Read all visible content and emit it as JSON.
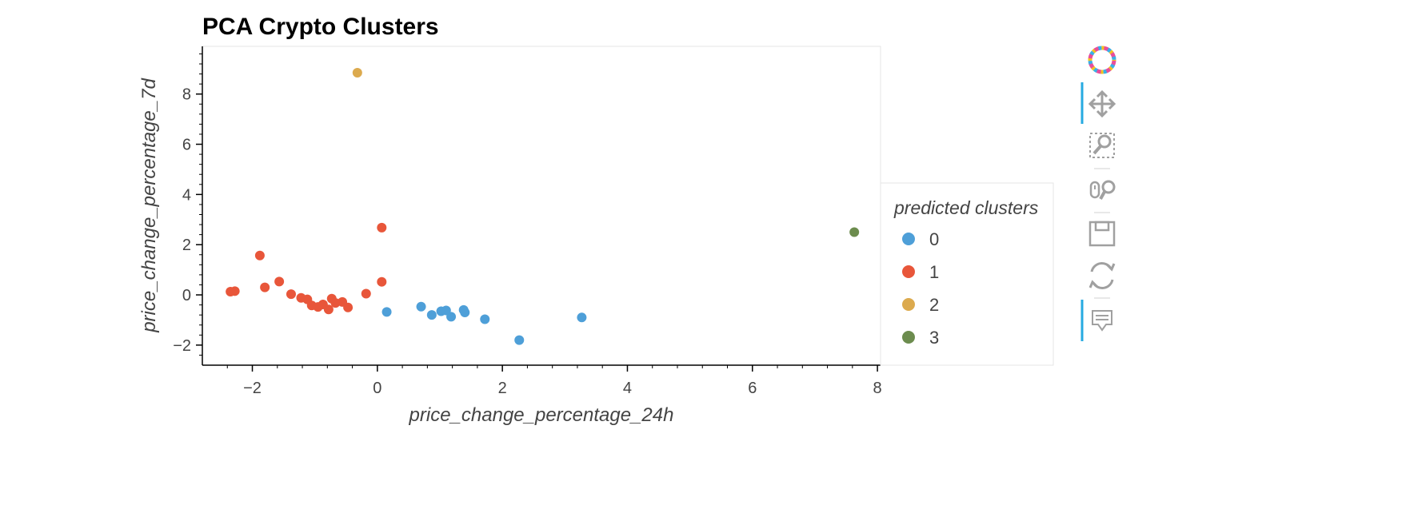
{
  "chart_data": {
    "type": "scatter",
    "title": "PCA Crypto Clusters",
    "xlabel": "price_change_percentage_24h",
    "ylabel": "price_change_percentage_7d",
    "xlim": [
      -2.8,
      8.05
    ],
    "ylim": [
      -2.8,
      9.9
    ],
    "xticks": [
      -2,
      0,
      2,
      4,
      6,
      8
    ],
    "yticks": [
      -2,
      0,
      2,
      4,
      6,
      8
    ],
    "xticklabels": [
      "−2",
      "0",
      "2",
      "4",
      "6",
      "8"
    ],
    "yticklabels": [
      "−2",
      "0",
      "2",
      "4",
      "6",
      "8"
    ],
    "grid": false,
    "legend": {
      "title": "predicted clusters",
      "placement": "right"
    },
    "series": [
      {
        "name": "0",
        "color": "#4e9fd8",
        "points": [
          [
            0.15,
            -0.68
          ],
          [
            0.7,
            -0.47
          ],
          [
            0.87,
            -0.8
          ],
          [
            1.02,
            -0.65
          ],
          [
            1.1,
            -0.62
          ],
          [
            1.18,
            -0.87
          ],
          [
            1.38,
            -0.6
          ],
          [
            1.4,
            -0.7
          ],
          [
            1.72,
            -0.97
          ],
          [
            2.27,
            -1.8
          ],
          [
            3.27,
            -0.9
          ]
        ]
      },
      {
        "name": "1",
        "color": "#e8563a",
        "points": [
          [
            -2.35,
            0.13
          ],
          [
            -2.28,
            0.15
          ],
          [
            -1.88,
            1.57
          ],
          [
            -1.8,
            0.3
          ],
          [
            -1.57,
            0.53
          ],
          [
            -1.38,
            0.03
          ],
          [
            -1.22,
            -0.12
          ],
          [
            -1.12,
            -0.18
          ],
          [
            -1.05,
            -0.42
          ],
          [
            -0.95,
            -0.48
          ],
          [
            -0.87,
            -0.38
          ],
          [
            -0.78,
            -0.58
          ],
          [
            -0.73,
            -0.15
          ],
          [
            -0.67,
            -0.32
          ],
          [
            -0.56,
            -0.28
          ],
          [
            -0.47,
            -0.5
          ],
          [
            -0.18,
            0.05
          ],
          [
            0.07,
            2.68
          ],
          [
            0.07,
            0.52
          ]
        ]
      },
      {
        "name": "2",
        "color": "#dcaa4e",
        "points": [
          [
            -0.32,
            8.85
          ]
        ]
      },
      {
        "name": "3",
        "color": "#6c8c4e",
        "points": [
          [
            7.63,
            2.5
          ]
        ]
      }
    ]
  },
  "toolbar": {
    "logo": "bokeh-logo-icon",
    "tools": [
      "pan-icon",
      "box-zoom-icon",
      "wheel-zoom-icon",
      "save-icon",
      "reset-icon",
      "hover-icon"
    ]
  }
}
